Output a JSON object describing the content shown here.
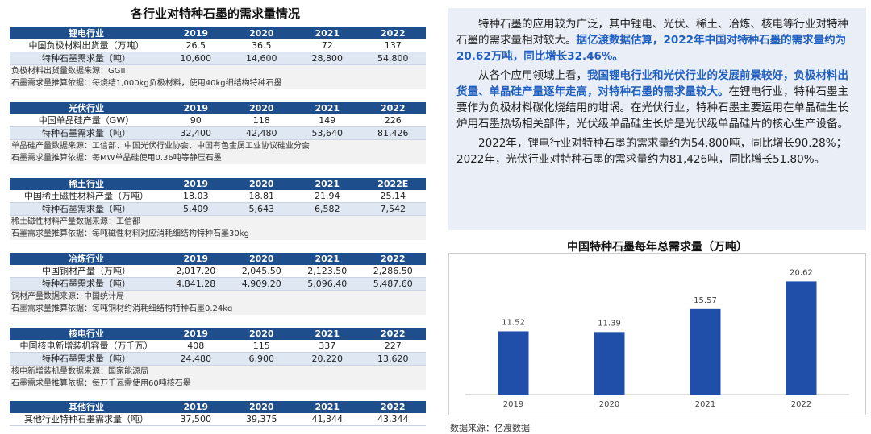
{
  "left_title": "各行业对特种石墨的需求量情况",
  "tables": [
    {
      "header": "锂电行业",
      "years": [
        "2019",
        "2020",
        "2021",
        "2022"
      ],
      "rows": [
        {
          "label": "中国负极材料出货量（万吨）",
          "values": [
            "26.5",
            "36.5",
            "72",
            "137"
          ]
        },
        {
          "label": "特种石墨需求量（吨）",
          "values": [
            "10,600",
            "14,600",
            "28,800",
            "54,800"
          ]
        }
      ],
      "notes": [
        "负极材料出货量数据来源：GGII",
        "石墨需求量推算依据：每烧结1,000kg负极材料，使用40kg细结构特种石墨"
      ]
    },
    {
      "header": "光伏行业",
      "years": [
        "2019",
        "2020",
        "2021",
        "2022"
      ],
      "rows": [
        {
          "label": "中国单晶硅产量（GW）",
          "values": [
            "90",
            "118",
            "149",
            "226"
          ]
        },
        {
          "label": "特种石墨需求量（吨）",
          "values": [
            "32,400",
            "42,480",
            "53,640",
            "81,426"
          ]
        }
      ],
      "notes": [
        "单晶硅产量数据来源：工信部、中国光伏行业协会、中国有色金属工业协议硅业分会",
        "石墨需求量推算依据：每MW单晶硅使用0.36吨等静压石墨"
      ]
    },
    {
      "header": "稀土行业",
      "years": [
        "2019",
        "2020",
        "2021",
        "2022E"
      ],
      "rows": [
        {
          "label": "中国稀土磁性材料产量（万吨）",
          "values": [
            "18.03",
            "18.81",
            "21.94",
            "25.14"
          ]
        },
        {
          "label": "特种石墨需求量（吨）",
          "values": [
            "5,409",
            "5,643",
            "6,582",
            "7,542"
          ]
        }
      ],
      "notes": [
        "稀土磁性材料产量数据来源：工信部",
        "石墨需求量推算依据：每吨磁性材料对应消耗细结构特种石墨30kg"
      ]
    },
    {
      "header": "冶炼行业",
      "years": [
        "2019",
        "2020",
        "2021",
        "2022"
      ],
      "rows": [
        {
          "label": "中国铜材产量（万吨）",
          "values": [
            "2,017.20",
            "2,045.50",
            "2,123.50",
            "2,286.50"
          ]
        },
        {
          "label": "特种石墨需求量（吨）",
          "values": [
            "4,841.28",
            "4,909.20",
            "5,096.40",
            "5,487.60"
          ]
        }
      ],
      "notes": [
        "铜材产量数据来源：中国统计局",
        "石墨需求量推算依据：每吨铜材约消耗细结构特种石墨0.24kg"
      ]
    },
    {
      "header": "核电行业",
      "years": [
        "2019",
        "2020",
        "2021",
        "2022"
      ],
      "rows": [
        {
          "label": "中国核电新增装机容量（万千瓦）",
          "values": [
            "408",
            "115",
            "337",
            "227"
          ]
        },
        {
          "label": "特种石墨需求量（吨）",
          "values": [
            "24,480",
            "6,900",
            "20,220",
            "13,620"
          ]
        }
      ],
      "notes": [
        "核电新增装机量数据来源：国家能源局",
        "石墨需求量推算依据：每万千瓦需使用60吨核石墨"
      ]
    },
    {
      "header": "其他行业",
      "years": [
        "2019",
        "2020",
        "2021",
        "2022"
      ],
      "rows": [
        {
          "label": "其他行业特种石墨需求量（吨）",
          "values": [
            "37,500",
            "39,375",
            "41,344",
            "43,344"
          ]
        }
      ],
      "notes": []
    }
  ],
  "paragraphs": [
    [
      {
        "t": "特种石墨的应用较为广泛，其中锂电、光伏、稀土、冶炼、核电等行业对特种石墨的需求量相对较大。",
        "hl": false
      },
      {
        "t": "据亿渡数据估算，2022年中国对特种石墨的需求量约为20.62万吨，同比增长32.46%。",
        "hl": true
      }
    ],
    [
      {
        "t": "从各个应用领域上看，",
        "hl": false
      },
      {
        "t": "我国锂电行业和光伏行业的发展前景较好，负极材料出货量、单晶硅产量逐年走高，对特种石墨的需求量较大。",
        "hl": true
      },
      {
        "t": "在锂电行业，特种石墨主要作为负极材料碳化烧结用的坩埚。在光伏行业，特种石墨主要运用在单晶硅生长炉用石墨热场相关部件，光伏级单晶硅生长炉是光伏级单晶硅片的核心生产设备。",
        "hl": false
      }
    ],
    [
      {
        "t": "2022年，锂电行业对特种石墨的需求量约为54,800吨，同比增长90.28%；2022年，光伏行业对特种石墨的需求量约为81,426吨，同比增长51.80%。",
        "hl": false
      }
    ]
  ],
  "chart_title": "中国特种石墨每年总需求量（万吨）",
  "chart_data": {
    "type": "bar",
    "title": "中国特种石墨每年总需求量（万吨）",
    "categories": [
      "2019",
      "2020",
      "2021",
      "2022"
    ],
    "values": [
      11.52,
      11.39,
      15.57,
      20.62
    ],
    "value_labels": [
      "11.52",
      "11.39",
      "15.57",
      "20.62"
    ],
    "ylim": [
      0,
      22
    ],
    "bar_color": "#1f4fa8",
    "grid": false
  },
  "source": "数据来源：亿渡数据",
  "colors": {
    "header_bg": "#1f4e8c",
    "highlight": "#1f5fbf",
    "textbox_bg": "#e9eef7"
  }
}
